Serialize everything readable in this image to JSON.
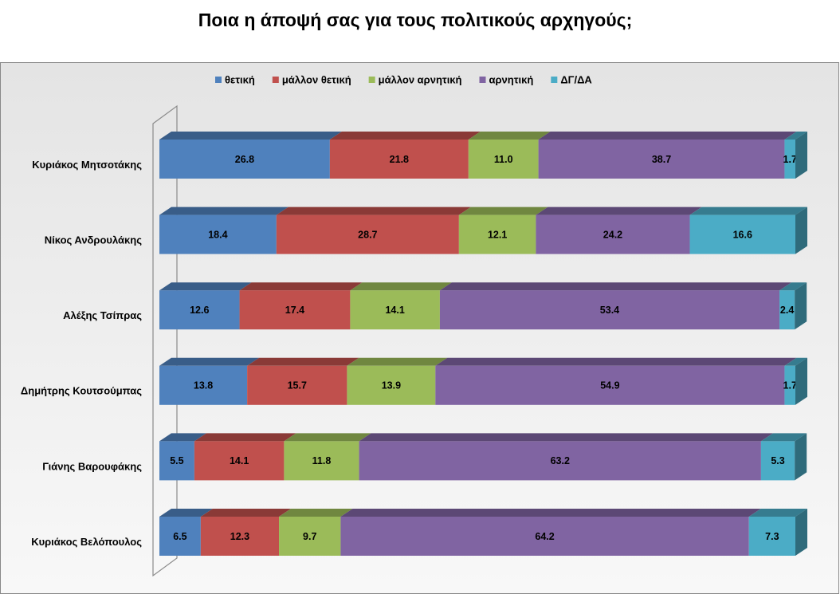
{
  "chart_data": {
    "type": "stacked-bar",
    "orientation": "horizontal",
    "title": "Ποια η άποψή σας για τους πολιτικούς αρχηγούς;",
    "categories": [
      "Κυριάκος Μητσοτάκης",
      "Νίκος Ανδρουλάκης",
      "Αλέξης Τσίπρας",
      "Δημήτρης Κουτσούμπας",
      "Γιάνης Βαρουφάκης",
      "Κυριάκος Βελόπουλος"
    ],
    "series": [
      {
        "name": "θετική",
        "color": "#4f81bd",
        "values": [
          26.8,
          18.4,
          12.6,
          13.8,
          5.5,
          6.5
        ]
      },
      {
        "name": "μάλλον θετική",
        "color": "#c0504d",
        "values": [
          21.8,
          28.7,
          17.4,
          15.7,
          14.1,
          12.3
        ]
      },
      {
        "name": "μάλλον αρνητική",
        "color": "#9bbb59",
        "values": [
          11.0,
          12.1,
          14.1,
          13.9,
          11.8,
          9.7
        ],
        "value_labels": [
          "11.0",
          "12.1",
          "14.1",
          "13.9",
          "11.8",
          "9.7"
        ]
      },
      {
        "name": "αρνητική",
        "color": "#8064a2",
        "values": [
          38.7,
          24.2,
          53.4,
          54.9,
          63.2,
          64.2
        ]
      },
      {
        "name": "ΔΓ/ΔΑ",
        "color": "#4bacc6",
        "values": [
          1.7,
          16.6,
          2.4,
          1.7,
          5.3,
          7.3
        ]
      }
    ],
    "xlim": [
      0,
      100
    ],
    "legend": "top"
  }
}
